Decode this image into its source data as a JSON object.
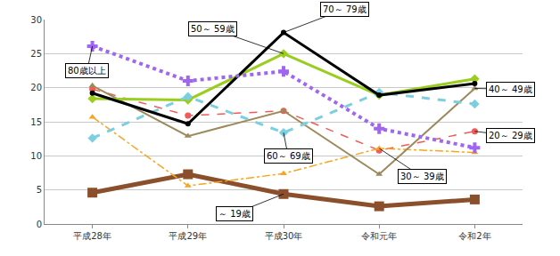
{
  "chart_data": {
    "type": "line",
    "categories": [
      "平成28年",
      "平成29年",
      "平成30年",
      "令和元年",
      "令和2年"
    ],
    "ylim": [
      0,
      30
    ],
    "yticks": [
      0,
      5,
      10,
      15,
      20,
      25,
      30
    ],
    "grid": true,
    "series": [
      {
        "name": "～ 19歳",
        "color": "#8b4f2b",
        "marker": "square",
        "line_style": "solid",
        "values": [
          4.6,
          7.3,
          4.4,
          2.6,
          3.6
        ]
      },
      {
        "name": "20～ 29歳",
        "color": "#f05a5a",
        "marker": "circle",
        "line_style": "dash",
        "values": [
          19.8,
          15.9,
          16.6,
          10.8,
          13.6
        ]
      },
      {
        "name": "30～ 39歳",
        "color": "#f5a623",
        "marker": "triangle-up",
        "line_style": "dashdot",
        "values": [
          15.7,
          5.6,
          7.4,
          11.1,
          10.5
        ]
      },
      {
        "name": "40～ 49歳",
        "color": "#9c8a5c",
        "marker": "triangle-up",
        "line_style": "solid",
        "values": [
          20.3,
          12.9,
          16.6,
          7.3,
          19.9
        ]
      },
      {
        "name": "50～ 59歳",
        "color": "#9acd1e",
        "marker": "diamond",
        "line_style": "solid",
        "values": [
          18.4,
          18.2,
          25.0,
          18.9,
          21.3
        ]
      },
      {
        "name": "60～ 69歳",
        "color": "#7ccfe0",
        "marker": "diamond",
        "line_style": "dash",
        "values": [
          12.6,
          18.7,
          13.4,
          19.3,
          17.6
        ]
      },
      {
        "name": "70～ 79歳",
        "color": "#000000",
        "marker": "circle",
        "line_style": "solid",
        "values": [
          19.2,
          14.7,
          28.1,
          18.9,
          20.6
        ]
      },
      {
        "name": "80歳以上",
        "color": "#a066f0",
        "marker": "cross",
        "line_style": "dot",
        "values": [
          26.1,
          21.0,
          22.4,
          14.0,
          11.2
        ]
      }
    ]
  }
}
